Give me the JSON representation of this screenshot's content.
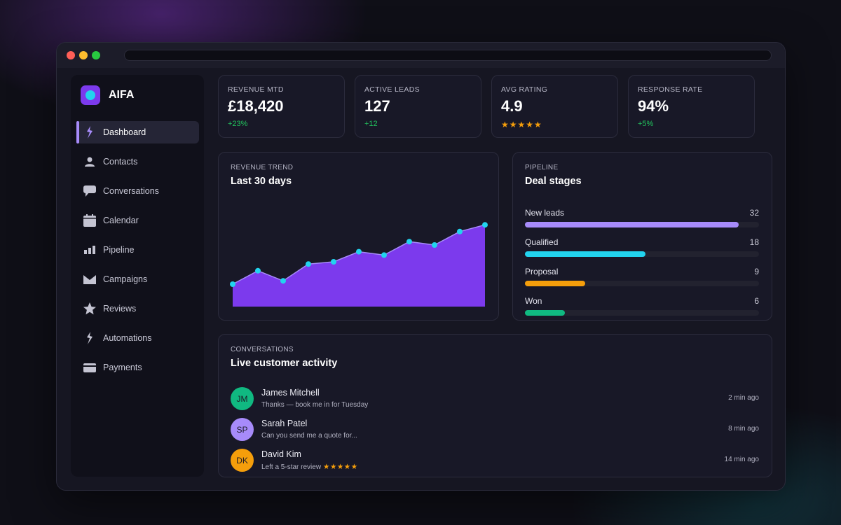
{
  "app": {
    "name": "AIFA"
  },
  "sidebar": {
    "items": [
      {
        "label": "Dashboard",
        "icon": "bolt-icon",
        "active": true
      },
      {
        "label": "Contacts",
        "icon": "user-icon",
        "active": false
      },
      {
        "label": "Conversations",
        "icon": "chat-icon",
        "active": false
      },
      {
        "label": "Calendar",
        "icon": "calendar-icon",
        "active": false
      },
      {
        "label": "Pipeline",
        "icon": "bar-chart-icon",
        "active": false
      },
      {
        "label": "Campaigns",
        "icon": "envelope-icon",
        "active": false
      },
      {
        "label": "Reviews",
        "icon": "star-icon",
        "active": false
      },
      {
        "label": "Automations",
        "icon": "bolt-icon",
        "active": false
      },
      {
        "label": "Payments",
        "icon": "card-icon",
        "active": false
      }
    ]
  },
  "kpis": [
    {
      "label": "REVENUE MTD",
      "value": "£18,420",
      "delta": "+23%"
    },
    {
      "label": "ACTIVE LEADS",
      "value": "127",
      "delta": "+12"
    },
    {
      "label": "AVG RATING",
      "value": "4.9",
      "stars": "★★★★★"
    },
    {
      "label": "RESPONSE RATE",
      "value": "94%",
      "delta": "+5%"
    }
  ],
  "trend": {
    "label": "REVENUE TREND",
    "title": "Last 30 days"
  },
  "chart_data": {
    "type": "area",
    "title": "Last 30 days",
    "y": [
      20,
      32,
      23,
      38,
      40,
      49,
      46,
      58,
      55,
      67,
      73
    ],
    "ylim": [
      0,
      100
    ],
    "grid": false,
    "colors": {
      "fill": "#7c3aed",
      "line": "#a78bfa",
      "points": "#22d3ee"
    }
  },
  "pipeline": {
    "label": "PIPELINE",
    "title": "Deal stages",
    "max": 35,
    "stages": [
      {
        "name": "New leads",
        "count": "32",
        "value": 32,
        "color": "#a78bfa"
      },
      {
        "name": "Qualified",
        "count": "18",
        "value": 18,
        "color": "#22d3ee"
      },
      {
        "name": "Proposal",
        "count": "9",
        "value": 9,
        "color": "#f59e0b"
      },
      {
        "name": "Won",
        "count": "6",
        "value": 6,
        "color": "#10b981"
      }
    ]
  },
  "conversations": {
    "label": "CONVERSATIONS",
    "title": "Live customer activity",
    "items": [
      {
        "initials": "JM",
        "name": "James Mitchell",
        "message": "Thanks — book me in for Tuesday",
        "stars": "",
        "time": "2 min ago",
        "color": "#10b981"
      },
      {
        "initials": "SP",
        "name": "Sarah Patel",
        "message": "Can you send me a quote for...",
        "stars": "",
        "time": "8 min ago",
        "color": "#a78bfa"
      },
      {
        "initials": "DK",
        "name": "David Kim",
        "message": "Left a 5-star review",
        "stars": "★★★★★",
        "time": "14 min ago",
        "color": "#f59e0b"
      }
    ]
  }
}
